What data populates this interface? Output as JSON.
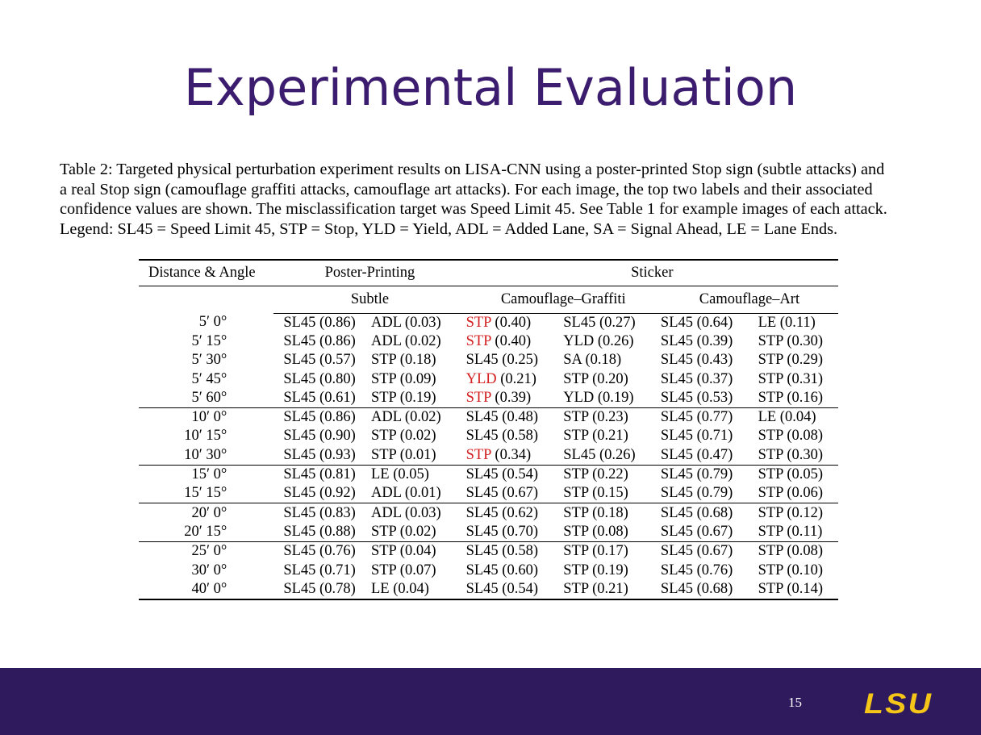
{
  "slide": {
    "title": "Experimental Evaluation",
    "page_number": "15",
    "logo_text": "LSU"
  },
  "caption": {
    "lines": [
      "Table 2: Targeted physical perturbation experiment results on LISA-CNN using a poster-printed Stop sign (subtle attacks) and",
      "a real Stop sign (camouflage graffiti attacks, camouflage art attacks). For each image, the top two labels and their associated",
      "confidence values are shown. The misclassification target was Speed Limit 45. See Table 1 for example images of each attack.",
      "Legend: SL45 = Speed Limit 45, STP = Stop, YLD = Yield, ADL = Added Lane, SA = Signal Ahead, LE = Lane Ends."
    ]
  },
  "table": {
    "header": {
      "distance_angle": "Distance & Angle",
      "poster_printing": "Poster-Printing",
      "sticker": "Sticker",
      "subtle": "Subtle",
      "camouflage_graffiti": "Camouflage–Graffiti",
      "camouflage_art": "Camouflage–Art"
    },
    "groups": [
      [
        {
          "dist": "5′ 0°",
          "cells": [
            [
              "SL45 (0.86)",
              ""
            ],
            [
              "ADL (0.03)",
              ""
            ],
            [
              "STP",
              " (0.40)"
            ],
            [
              "SL45 (0.27)",
              ""
            ],
            [
              "SL45 (0.64)",
              ""
            ],
            [
              "LE (0.11)",
              ""
            ]
          ],
          "red": [
            2
          ]
        },
        {
          "dist": "5′ 15°",
          "cells": [
            [
              "SL45 (0.86)",
              ""
            ],
            [
              "ADL (0.02)",
              ""
            ],
            [
              "STP",
              " (0.40)"
            ],
            [
              "YLD (0.26)",
              ""
            ],
            [
              "SL45 (0.39)",
              ""
            ],
            [
              "STP (0.30)",
              ""
            ]
          ],
          "red": [
            2
          ]
        },
        {
          "dist": "5′ 30°",
          "cells": [
            [
              "SL45 (0.57)",
              ""
            ],
            [
              "STP (0.18)",
              ""
            ],
            [
              "SL45 (0.25)",
              ""
            ],
            [
              "SA (0.18)",
              ""
            ],
            [
              "SL45 (0.43)",
              ""
            ],
            [
              "STP (0.29)",
              ""
            ]
          ],
          "red": []
        },
        {
          "dist": "5′ 45°",
          "cells": [
            [
              "SL45 (0.80)",
              ""
            ],
            [
              "STP (0.09)",
              ""
            ],
            [
              "YLD",
              " (0.21)"
            ],
            [
              "STP (0.20)",
              ""
            ],
            [
              "SL45 (0.37)",
              ""
            ],
            [
              "STP (0.31)",
              ""
            ]
          ],
          "red": [
            2
          ]
        },
        {
          "dist": "5′ 60°",
          "cells": [
            [
              "SL45 (0.61)",
              ""
            ],
            [
              "STP (0.19)",
              ""
            ],
            [
              "STP",
              " (0.39)"
            ],
            [
              "YLD (0.19)",
              ""
            ],
            [
              "SL45 (0.53)",
              ""
            ],
            [
              "STP (0.16)",
              ""
            ]
          ],
          "red": [
            2
          ]
        }
      ],
      [
        {
          "dist": "10′ 0°",
          "cells": [
            [
              "SL45 (0.86)",
              ""
            ],
            [
              "ADL (0.02)",
              ""
            ],
            [
              "SL45 (0.48)",
              ""
            ],
            [
              "STP (0.23)",
              ""
            ],
            [
              "SL45 (0.77)",
              ""
            ],
            [
              "LE (0.04)",
              ""
            ]
          ],
          "red": []
        },
        {
          "dist": "10′ 15°",
          "cells": [
            [
              "SL45 (0.90)",
              ""
            ],
            [
              "STP (0.02)",
              ""
            ],
            [
              "SL45 (0.58)",
              ""
            ],
            [
              "STP (0.21)",
              ""
            ],
            [
              "SL45 (0.71)",
              ""
            ],
            [
              "STP (0.08)",
              ""
            ]
          ],
          "red": []
        },
        {
          "dist": "10′ 30°",
          "cells": [
            [
              "SL45 (0.93)",
              ""
            ],
            [
              "STP (0.01)",
              ""
            ],
            [
              "STP",
              " (0.34)"
            ],
            [
              "SL45 (0.26)",
              ""
            ],
            [
              "SL45 (0.47)",
              ""
            ],
            [
              "STP (0.30)",
              ""
            ]
          ],
          "red": [
            2
          ]
        }
      ],
      [
        {
          "dist": "15′ 0°",
          "cells": [
            [
              "SL45 (0.81)",
              ""
            ],
            [
              "LE (0.05)",
              ""
            ],
            [
              "SL45 (0.54)",
              ""
            ],
            [
              "STP (0.22)",
              ""
            ],
            [
              "SL45 (0.79)",
              ""
            ],
            [
              "STP (0.05)",
              ""
            ]
          ],
          "red": []
        },
        {
          "dist": "15′ 15°",
          "cells": [
            [
              "SL45 (0.92)",
              ""
            ],
            [
              "ADL (0.01)",
              ""
            ],
            [
              "SL45 (0.67)",
              ""
            ],
            [
              "STP (0.15)",
              ""
            ],
            [
              "SL45 (0.79)",
              ""
            ],
            [
              "STP (0.06)",
              ""
            ]
          ],
          "red": []
        }
      ],
      [
        {
          "dist": "20′ 0°",
          "cells": [
            [
              "SL45 (0.83)",
              ""
            ],
            [
              "ADL (0.03)",
              ""
            ],
            [
              "SL45 (0.62)",
              ""
            ],
            [
              "STP (0.18)",
              ""
            ],
            [
              "SL45 (0.68)",
              ""
            ],
            [
              "STP (0.12)",
              ""
            ]
          ],
          "red": []
        },
        {
          "dist": "20′ 15°",
          "cells": [
            [
              "SL45 (0.88)",
              ""
            ],
            [
              "STP (0.02)",
              ""
            ],
            [
              "SL45 (0.70)",
              ""
            ],
            [
              "STP (0.08)",
              ""
            ],
            [
              "SL45 (0.67)",
              ""
            ],
            [
              "STP (0.11)",
              ""
            ]
          ],
          "red": []
        }
      ],
      [
        {
          "dist": "25′ 0°",
          "cells": [
            [
              "SL45 (0.76)",
              ""
            ],
            [
              "STP (0.04)",
              ""
            ],
            [
              "SL45 (0.58)",
              ""
            ],
            [
              "STP (0.17)",
              ""
            ],
            [
              "SL45 (0.67)",
              ""
            ],
            [
              "STP (0.08)",
              ""
            ]
          ],
          "red": []
        },
        {
          "dist": "30′ 0°",
          "cells": [
            [
              "SL45 (0.71)",
              ""
            ],
            [
              "STP (0.07)",
              ""
            ],
            [
              "SL45 (0.60)",
              ""
            ],
            [
              "STP (0.19)",
              ""
            ],
            [
              "SL45 (0.76)",
              ""
            ],
            [
              "STP (0.10)",
              ""
            ]
          ],
          "red": []
        },
        {
          "dist": "40′ 0°",
          "cells": [
            [
              "SL45 (0.78)",
              ""
            ],
            [
              "LE (0.04)",
              ""
            ],
            [
              "SL45 (0.54)",
              ""
            ],
            [
              "STP (0.21)",
              ""
            ],
            [
              "SL45 (0.68)",
              ""
            ],
            [
              "STP (0.14)",
              ""
            ]
          ],
          "red": []
        }
      ]
    ]
  },
  "colors": {
    "title": "#3b1c6e",
    "footer": "#2e1a5c",
    "logo": "#f5c518",
    "highlight": "#d42020"
  }
}
